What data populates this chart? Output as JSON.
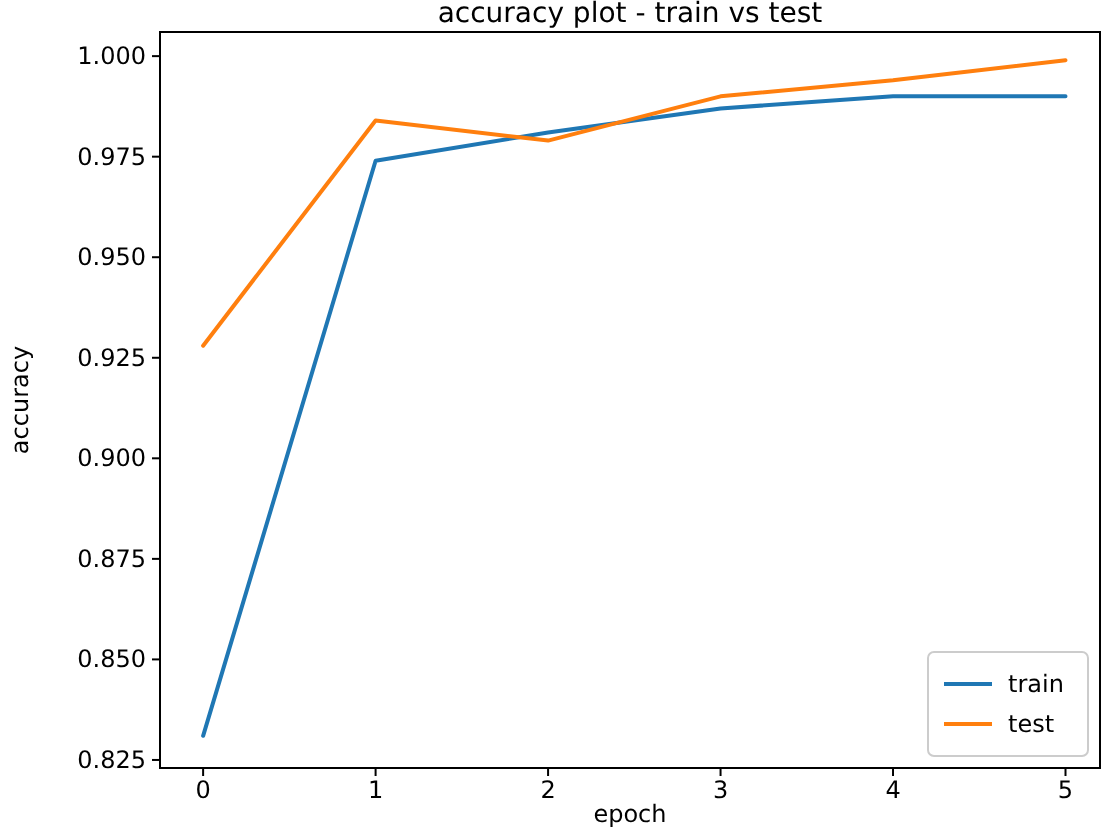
{
  "chart_data": {
    "type": "line",
    "title": "accuracy plot - train vs test",
    "xlabel": "epoch",
    "ylabel": "accuracy",
    "x": [
      0,
      1,
      2,
      3,
      4,
      5
    ],
    "series": [
      {
        "name": "train",
        "color": "#1f77b4",
        "values": [
          0.831,
          0.974,
          0.981,
          0.987,
          0.99,
          0.99
        ]
      },
      {
        "name": "test",
        "color": "#ff7f0e",
        "values": [
          0.928,
          0.984,
          0.979,
          0.99,
          0.994,
          0.999
        ]
      }
    ],
    "xlim": [
      -0.25,
      5.2
    ],
    "xticks": [
      0,
      1,
      2,
      3,
      4,
      5
    ],
    "ylim": [
      0.823,
      1.006
    ],
    "yticks": [
      {
        "value": 0.825,
        "label": "0.825"
      },
      {
        "value": 0.85,
        "label": "0.850"
      },
      {
        "value": 0.875,
        "label": "0.875"
      },
      {
        "value": 0.9,
        "label": "0.900"
      },
      {
        "value": 0.925,
        "label": "0.925"
      },
      {
        "value": 0.95,
        "label": "0.950"
      },
      {
        "value": 0.975,
        "label": "0.975"
      },
      {
        "value": 1.0,
        "label": "1.000"
      }
    ],
    "legend": "bottom right",
    "grid": false,
    "marker": "none",
    "line_style": "solid"
  }
}
